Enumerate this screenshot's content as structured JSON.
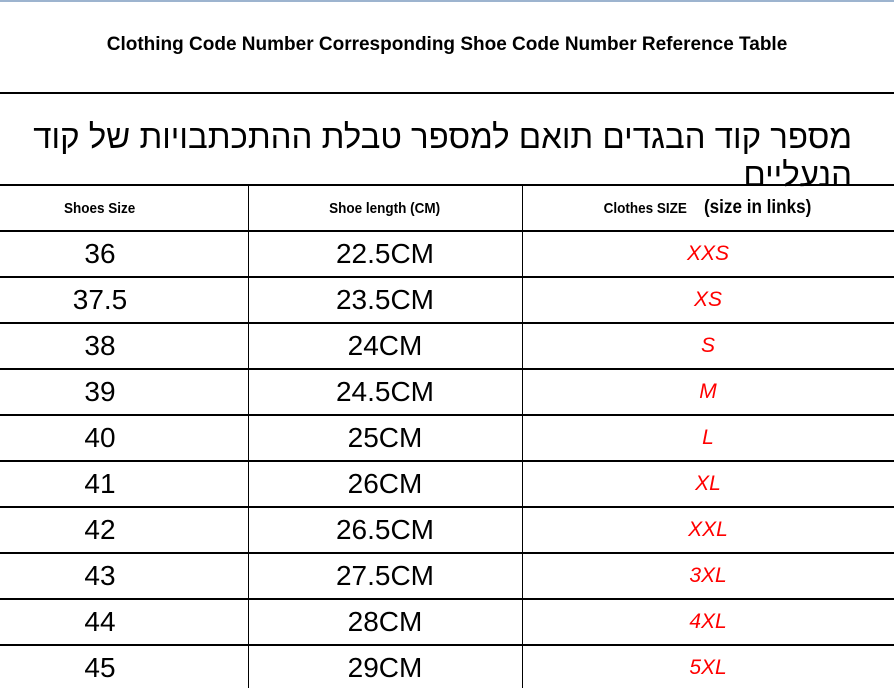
{
  "title": "Clothing Code Number Corresponding Shoe Code Number Reference Table",
  "subtitle_hebrew": "מספר קוד הבגדים תואם למספר טבלת ההתכתבויות של קוד הנעליים",
  "table": {
    "headers": {
      "shoes_size": "Shoes Size",
      "shoe_length": "Shoe length (CM)",
      "clothes_size": "Clothes SIZE",
      "clothes_size_note": "(size in links)"
    },
    "rows": [
      {
        "shoes_size": "36",
        "shoe_length": "22.5CM",
        "clothes_size": "XXS"
      },
      {
        "shoes_size": "37.5",
        "shoe_length": "23.5CM",
        "clothes_size": "XS"
      },
      {
        "shoes_size": "38",
        "shoe_length": "24CM",
        "clothes_size": "S"
      },
      {
        "shoes_size": "39",
        "shoe_length": "24.5CM",
        "clothes_size": "M"
      },
      {
        "shoes_size": "40",
        "shoe_length": "25CM",
        "clothes_size": "L"
      },
      {
        "shoes_size": "41",
        "shoe_length": "26CM",
        "clothes_size": "XL"
      },
      {
        "shoes_size": "42",
        "shoe_length": "26.5CM",
        "clothes_size": "XXL"
      },
      {
        "shoes_size": "43",
        "shoe_length": "27.5CM",
        "clothes_size": "3XL"
      },
      {
        "shoes_size": "44",
        "shoe_length": "28CM",
        "clothes_size": "4XL"
      },
      {
        "shoes_size": "45",
        "shoe_length": "29CM",
        "clothes_size": "5XL"
      }
    ]
  },
  "colors": {
    "clothes_size_text": "#ff0000",
    "top_border": "#9db4cf"
  }
}
